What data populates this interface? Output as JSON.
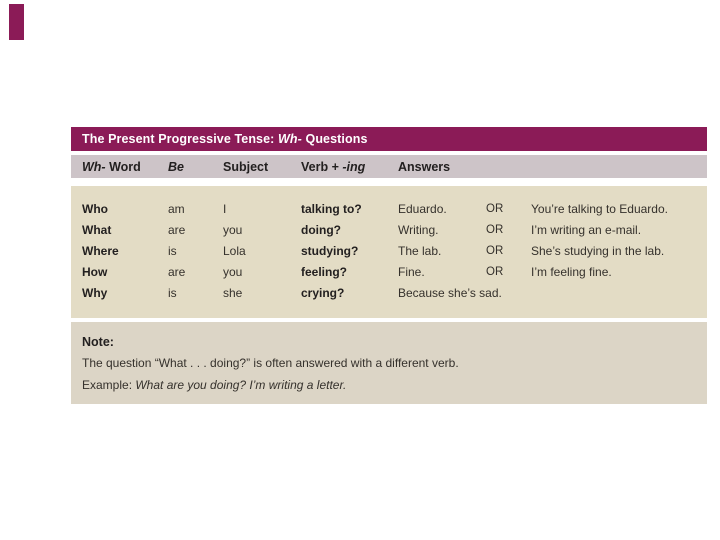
{
  "colors": {
    "pageBg": "#ffffff",
    "maroon": "#8b1b57",
    "headerBg": "#cdc4c8",
    "bodyBg": "#e3dcc5",
    "noteBg": "#dcd5c6",
    "titleText": "#ffffff",
    "text": "#35312c",
    "textBold": "#232020"
  },
  "title": {
    "pre": "The Present Progressive Tense: ",
    "italic": "Wh-",
    "post": " Questions"
  },
  "headers": {
    "wh_italic": "Wh-",
    "wh_rest": " Word",
    "be": "Be",
    "subject": "Subject",
    "verb_pre": "Verb + ",
    "verb_italic": "-ing",
    "answers": "Answers"
  },
  "rows": [
    {
      "wh": "Who",
      "be": "am",
      "subject": "I",
      "verb": "talking to?",
      "short": "Eduardo.",
      "or": "OR",
      "full": "You’re talking to Eduardo."
    },
    {
      "wh": "What",
      "be": "are",
      "subject": "you",
      "verb": "doing?",
      "short": "Writing.",
      "or": "OR",
      "full": "I’m writing an e-mail."
    },
    {
      "wh": "Where",
      "be": "is",
      "subject": "Lola",
      "verb": "studying?",
      "short": "The lab.",
      "or": "OR",
      "full": "She’s studying in the lab."
    },
    {
      "wh": "How",
      "be": "are",
      "subject": "you",
      "verb": "feeling?",
      "short": "Fine.",
      "or": "OR",
      "full": "I’m feeling fine."
    },
    {
      "wh": "Why",
      "be": "is",
      "subject": "she",
      "verb": "crying?",
      "short": "Because she’s sad.",
      "or": "",
      "full": ""
    }
  ],
  "note": {
    "label": "Note:",
    "line1": "The question “What . . . doing?” is often answered with a different verb.",
    "example_label": "Example: ",
    "example_text": "What are you doing? I’m writing a letter."
  }
}
